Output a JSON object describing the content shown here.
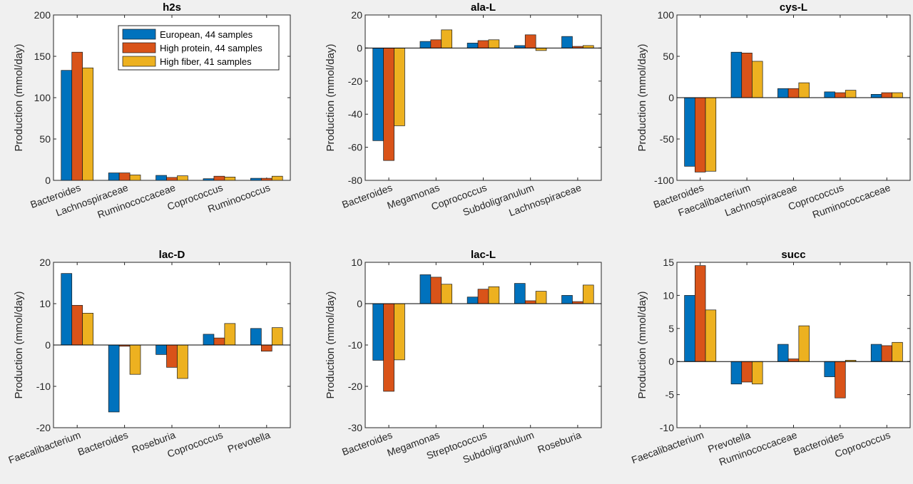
{
  "colors": {
    "European": "#0072BD",
    "High protein": "#D95319",
    "High fiber": "#EDB120"
  },
  "series_names": [
    "European, 44 samples",
    "High protein, 44 samples",
    "High fiber, 41 samples"
  ],
  "chart_data": [
    {
      "type": "bar",
      "title": "h2s",
      "ylabel": "Production (mmol/day)",
      "ylim": [
        0,
        200
      ],
      "yticks": [
        0,
        50,
        100,
        150,
        200
      ],
      "categories": [
        "Bacteroides",
        "Lachnospiraceae",
        "Ruminococcaceae",
        "Coprococcus",
        "Ruminococcus"
      ],
      "legend": "top-right",
      "series": [
        {
          "name": "European, 44 samples",
          "values": [
            133,
            9,
            6,
            2,
            2.5
          ]
        },
        {
          "name": "High protein, 44 samples",
          "values": [
            155,
            9,
            3.5,
            5,
            2.5
          ]
        },
        {
          "name": "High fiber, 41 samples",
          "values": [
            136,
            6.5,
            5.5,
            4,
            5
          ]
        }
      ]
    },
    {
      "type": "bar",
      "title": "ala-L",
      "ylabel": "Production (mmol/day)",
      "ylim": [
        -80,
        20
      ],
      "yticks": [
        -80,
        -60,
        -40,
        -20,
        0,
        20
      ],
      "categories": [
        "Bacteroides",
        "Megamonas",
        "Coprococcus",
        "Subdoligranulum",
        "Lachnospiraceae"
      ],
      "series": [
        {
          "values": [
            -56,
            4,
            3,
            1.5,
            7
          ]
        },
        {
          "values": [
            -68,
            5,
            4.5,
            8,
            1
          ]
        },
        {
          "values": [
            -47,
            11,
            5,
            -1.5,
            1.5
          ]
        }
      ]
    },
    {
      "type": "bar",
      "title": "cys-L",
      "ylabel": "Production (mmol/day)",
      "ylim": [
        -100,
        100
      ],
      "yticks": [
        -100,
        -50,
        0,
        50,
        100
      ],
      "categories": [
        "Bacteroides",
        "Faecalibacterium",
        "Lachnospiraceae",
        "Coprococcus",
        "Ruminococcaceae"
      ],
      "series": [
        {
          "values": [
            -83,
            55,
            11,
            7,
            4
          ]
        },
        {
          "values": [
            -90,
            54,
            11,
            6,
            6
          ]
        },
        {
          "values": [
            -89,
            44,
            18,
            9,
            6
          ]
        }
      ]
    },
    {
      "type": "bar",
      "title": "lac-D",
      "ylabel": "Production (mmol/day)",
      "ylim": [
        -20,
        20
      ],
      "yticks": [
        -20,
        -10,
        0,
        10,
        20
      ],
      "categories": [
        "Faecalibacterium",
        "Bacteroides",
        "Roseburia",
        "Coprococcus",
        "Prevotella"
      ],
      "series": [
        {
          "values": [
            17.3,
            -16.2,
            -2.3,
            2.6,
            4
          ]
        },
        {
          "values": [
            9.6,
            -0.3,
            -5.4,
            1.7,
            -1.5
          ]
        },
        {
          "values": [
            7.7,
            -7.1,
            -8.1,
            5.2,
            4.2
          ]
        }
      ]
    },
    {
      "type": "bar",
      "title": "lac-L",
      "ylabel": "Production (mmol/day)",
      "ylim": [
        -30,
        10
      ],
      "yticks": [
        -30,
        -20,
        -10,
        0,
        10
      ],
      "categories": [
        "Bacteroides",
        "Megamonas",
        "Streptococcus",
        "Subdoligranulum",
        "Roseburia"
      ],
      "series": [
        {
          "values": [
            -13.7,
            7,
            1.6,
            4.9,
            2
          ]
        },
        {
          "values": [
            -21.2,
            6.4,
            3.5,
            0.7,
            0.5
          ]
        },
        {
          "values": [
            -13.6,
            4.7,
            4.1,
            3,
            4.5
          ]
        }
      ]
    },
    {
      "type": "bar",
      "title": "succ",
      "ylabel": "Production (mmol/day)",
      "ylim": [
        -10,
        15
      ],
      "yticks": [
        -10,
        -5,
        0,
        5,
        10,
        15
      ],
      "categories": [
        "Faecalibacterium",
        "Prevotella",
        "Ruminococcaceae",
        "Bacteroides",
        "Coprococcus"
      ],
      "series": [
        {
          "values": [
            10,
            -3.4,
            2.6,
            -2.3,
            2.6
          ]
        },
        {
          "values": [
            14.5,
            -3.1,
            0.4,
            -5.5,
            2.4
          ]
        },
        {
          "values": [
            7.8,
            -3.4,
            5.4,
            0.2,
            2.9
          ]
        }
      ]
    }
  ]
}
